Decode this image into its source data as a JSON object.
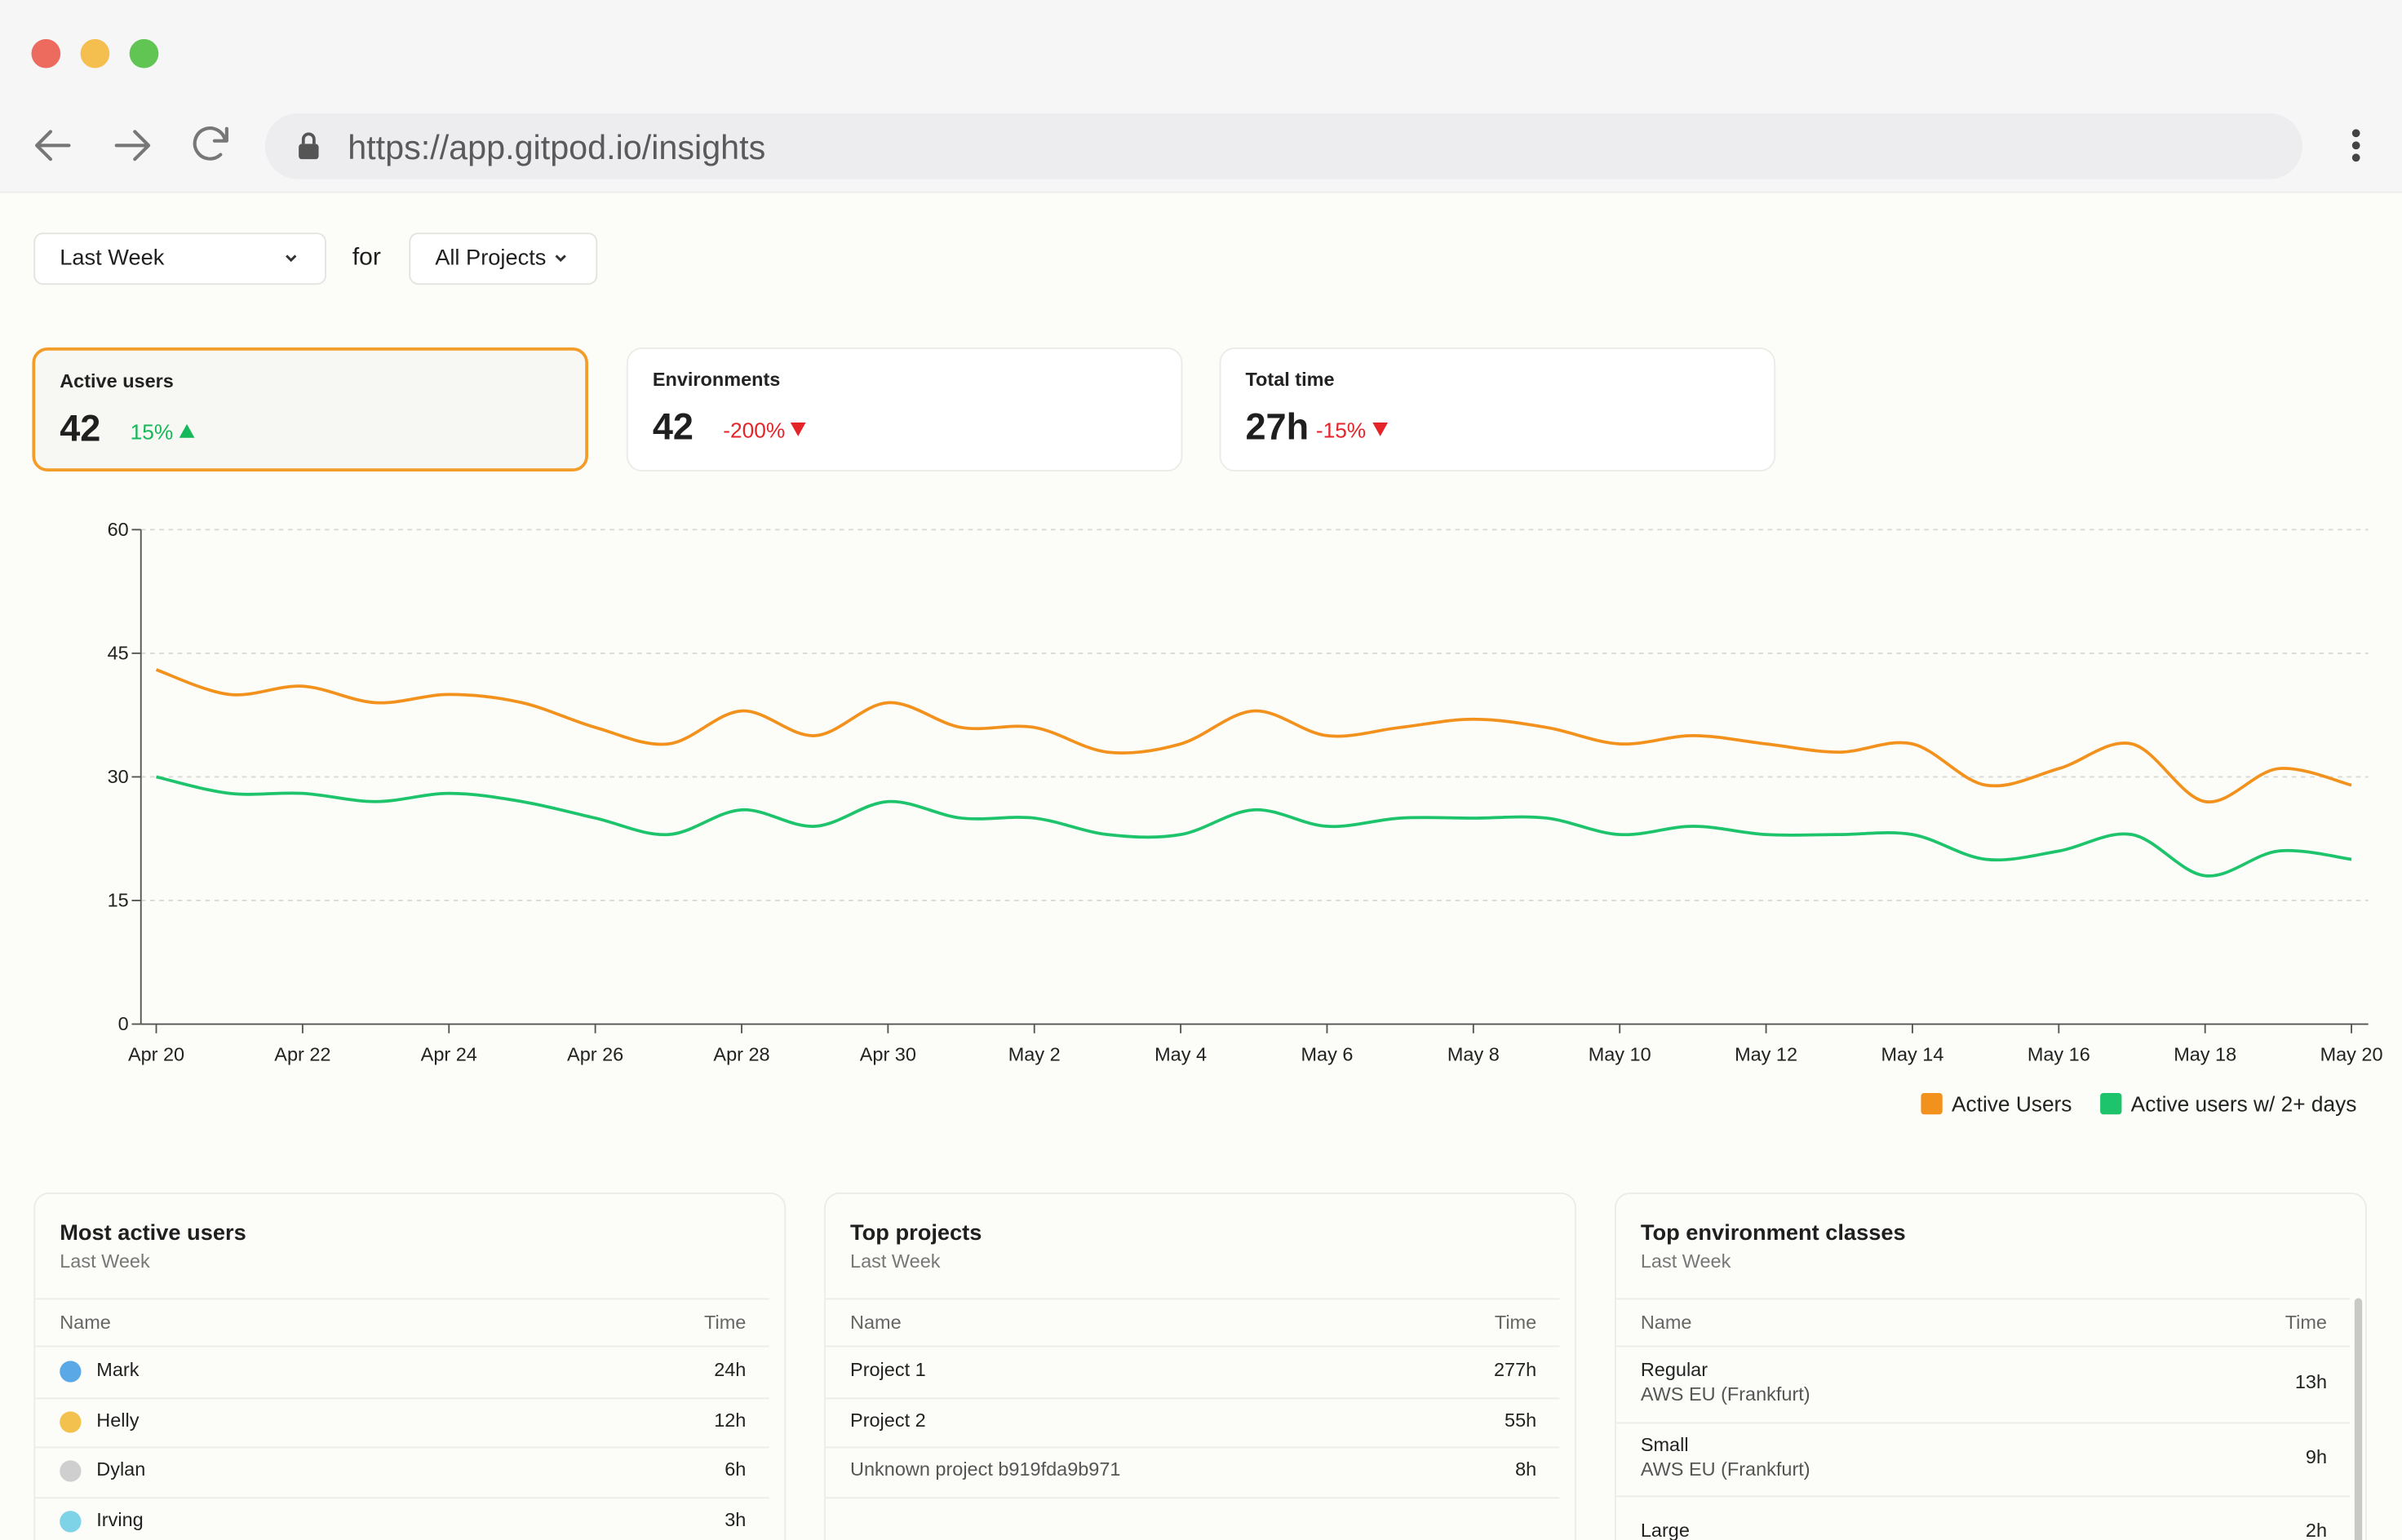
{
  "browser": {
    "url": "https://app.gitpod.io/insights"
  },
  "filters": {
    "period": "Last Week",
    "joiner": "for",
    "project": "All Projects"
  },
  "stats": [
    {
      "label": "Active users",
      "value": "42",
      "delta": "15%",
      "trend": "up"
    },
    {
      "label": "Environments",
      "value": "42",
      "delta": "-200%",
      "trend": "down"
    },
    {
      "label": "Total time",
      "value": "27h",
      "delta": "-15%",
      "trend": "down"
    }
  ],
  "chart_data": {
    "type": "line",
    "categories": [
      "Apr 20",
      null,
      "Apr 22",
      null,
      "Apr 24",
      null,
      "Apr 26",
      null,
      "Apr 28",
      null,
      "Apr 30",
      null,
      "May 2",
      null,
      "May 4",
      null,
      "May 6",
      null,
      "May 8",
      null,
      "May 10",
      null,
      "May 12",
      null,
      "May 14",
      null,
      "May 16",
      null,
      "May 18",
      null,
      "May 20"
    ],
    "series": [
      {
        "name": "Active Users",
        "color": "#f2921d",
        "values": [
          43,
          40,
          41,
          39,
          40,
          39,
          36,
          34,
          38,
          35,
          39,
          36,
          36,
          33,
          34,
          38,
          35,
          36,
          37,
          36,
          34,
          35,
          34,
          33,
          34,
          29,
          31,
          34,
          27,
          31,
          29
        ]
      },
      {
        "name": "Active users w/ 2+ days",
        "color": "#1ec46b",
        "values": [
          30,
          28,
          28,
          27,
          28,
          27,
          25,
          23,
          26,
          24,
          27,
          25,
          25,
          23,
          23,
          26,
          24,
          25,
          25,
          25,
          23,
          24,
          23,
          23,
          23,
          20,
          21,
          23,
          18,
          21,
          20
        ]
      }
    ],
    "ylim": [
      0,
      60
    ],
    "yticks": [
      0,
      15,
      30,
      45,
      60
    ],
    "grid": true,
    "legend": "bottom-right"
  },
  "tables": [
    {
      "title": "Most active users",
      "subtitle": "Last Week",
      "columns": [
        "Name",
        "Time"
      ],
      "rows": [
        {
          "name": "Mark",
          "time": "24h"
        },
        {
          "name": "Helly",
          "time": "12h"
        },
        {
          "name": "Dylan",
          "time": "6h"
        },
        {
          "name": "Irving",
          "time": "3h"
        }
      ]
    },
    {
      "title": "Top projects",
      "subtitle": "Last Week",
      "columns": [
        "Name",
        "Time"
      ],
      "rows": [
        {
          "name": "Project 1",
          "time": "277h"
        },
        {
          "name": "Project 2",
          "time": "55h"
        },
        {
          "name": "Unknown project b919fda9b971",
          "time": "8h"
        }
      ]
    },
    {
      "title": "Top environment classes",
      "subtitle": "Last Week",
      "columns": [
        "Name",
        "Time"
      ],
      "rows": [
        {
          "name": "Regular",
          "detail": "AWS EU (Frankfurt)",
          "time": "13h"
        },
        {
          "name": "Small",
          "detail": "AWS EU (Frankfurt)",
          "time": "9h"
        },
        {
          "name": "Large",
          "time": "2h"
        }
      ]
    }
  ]
}
